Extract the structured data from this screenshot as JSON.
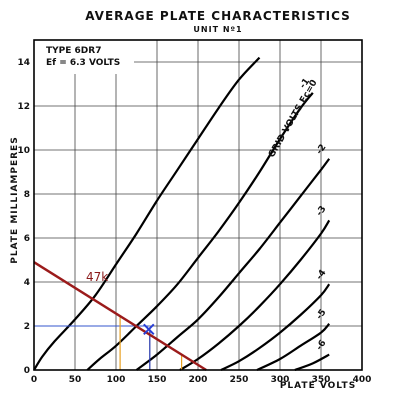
{
  "chart_data": {
    "type": "line",
    "title": "AVERAGE PLATE CHARACTERISTICS",
    "subtitle": "UNIT Nº1",
    "tube_type": "TYPE 6DR7",
    "heater": "Ef = 6.3 VOLTS",
    "xlabel": "PLATE VOLTS",
    "ylabel": "PLATE MILLIAMPERES",
    "xlim": [
      0,
      400
    ],
    "ylim": [
      0,
      15
    ],
    "x_ticks": [
      0,
      50,
      100,
      150,
      200,
      250,
      300,
      350,
      400
    ],
    "y_ticks": [
      0,
      2,
      4,
      6,
      8,
      10,
      12,
      14
    ],
    "x_tick_labels": [
      "0",
      "50",
      "100",
      "150",
      "200",
      "250",
      "300",
      "350",
      "400"
    ],
    "y_tick_labels": [
      "0",
      "2",
      "4",
      "6",
      "8",
      "10",
      "12",
      "14"
    ],
    "grid": true,
    "grid_label": "GRID VOLTS Ec=0",
    "series": [
      {
        "name": "0",
        "x": [
          0,
          10,
          25,
          50,
          75,
          100,
          125,
          150,
          175,
          200,
          225,
          250,
          275
        ],
        "y": [
          0,
          0.6,
          1.3,
          2.3,
          3.4,
          4.8,
          6.2,
          7.7,
          9.1,
          10.5,
          11.9,
          13.2,
          14.2
        ]
      },
      {
        "name": "-1",
        "x": [
          65,
          80,
          100,
          125,
          150,
          175,
          200,
          225,
          250,
          275,
          300,
          325,
          340
        ],
        "y": [
          0,
          0.5,
          1.1,
          2.0,
          2.9,
          3.9,
          5.1,
          6.3,
          7.6,
          9.0,
          10.5,
          11.9,
          12.6
        ]
      },
      {
        "name": "-2",
        "x": [
          125,
          150,
          175,
          200,
          225,
          250,
          275,
          300,
          325,
          350,
          360
        ],
        "y": [
          0,
          0.7,
          1.5,
          2.3,
          3.3,
          4.4,
          5.5,
          6.7,
          7.9,
          9.1,
          9.6
        ]
      },
      {
        "name": "-3",
        "x": [
          178,
          200,
          225,
          250,
          275,
          300,
          325,
          350,
          360
        ],
        "y": [
          0,
          0.5,
          1.2,
          2.0,
          2.9,
          3.9,
          5.0,
          6.2,
          6.8
        ]
      },
      {
        "name": "-4",
        "x": [
          228,
          250,
          275,
          300,
          325,
          350,
          360
        ],
        "y": [
          0,
          0.4,
          1.0,
          1.7,
          2.5,
          3.4,
          3.9
        ]
      },
      {
        "name": "-5",
        "x": [
          272,
          300,
          325,
          350,
          360
        ],
        "y": [
          0,
          0.5,
          1.1,
          1.7,
          2.1
        ]
      },
      {
        "name": "-6",
        "x": [
          318,
          340,
          360
        ],
        "y": [
          0,
          0.3,
          0.7
        ]
      }
    ],
    "annotations": {
      "load_line": {
        "label": "47k",
        "x": [
          0,
          210
        ],
        "y": [
          4.9,
          0
        ]
      },
      "operating_point": {
        "x": 140,
        "y": 1.85,
        "marker": "x"
      },
      "operating_ia_mA": 2,
      "operating_va_V": 140,
      "swing_va_V": [
        105,
        180
      ]
    }
  }
}
